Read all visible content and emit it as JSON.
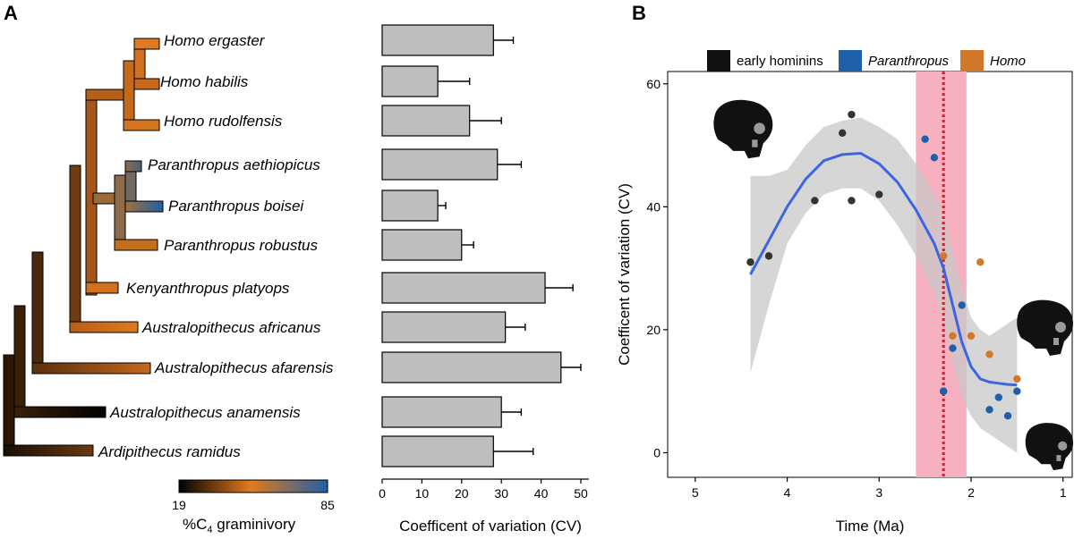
{
  "panels": {
    "a": "A",
    "b": "B"
  },
  "phylogeny": {
    "species": [
      "Homo ergaster",
      "Homo habilis",
      "Homo rudolfensis",
      "Paranthropus aethiopicus",
      "Paranthropus boisei",
      "Paranthropus robustus",
      "Kenyanthropus platyops",
      "Australopithecus africanus",
      "Australopithecus afarensis",
      "Australopithecus anamensis",
      "Ardipithecus ramidus"
    ],
    "colorbar": {
      "min": "19",
      "max": "85",
      "label_prefix": "%C",
      "label_sub": "4",
      "label_suffix": " graminivory",
      "colors": [
        "#000000",
        "#e07b1d",
        "#1f5fa8"
      ]
    }
  },
  "chart_data": [
    {
      "type": "bar",
      "orientation": "horizontal",
      "categories": [
        "Homo ergaster",
        "Homo habilis",
        "Homo rudolfensis",
        "Paranthropus aethiopicus",
        "Paranthropus boisei",
        "Paranthropus robustus",
        "Kenyanthropus platyops",
        "Australopithecus africanus",
        "Australopithecus afarensis",
        "Australopithecus anamensis",
        "Ardipithecus ramidus"
      ],
      "values": [
        28,
        14,
        22,
        29,
        14,
        20,
        41,
        31,
        45,
        30,
        28
      ],
      "errors": [
        5,
        8,
        8,
        6,
        2,
        3,
        7,
        5,
        5,
        5,
        10
      ],
      "xlabel": "Coefficent of variation (CV)",
      "xlim": [
        0,
        52
      ],
      "xticks": [
        0,
        10,
        20,
        30,
        40,
        50
      ],
      "bar_color": "#bebebe"
    },
    {
      "type": "scatter",
      "xlabel": "Time (Ma)",
      "ylabel": "Coefficent of variation (CV)",
      "xlim": [
        5.3,
        0.9
      ],
      "ylim": [
        -4,
        62
      ],
      "xticks": [
        5,
        4,
        3,
        2,
        1
      ],
      "yticks": [
        0,
        20,
        40,
        60
      ],
      "x_reversed": true,
      "legend": [
        {
          "label": "early hominins",
          "italic": false,
          "color": "#111111"
        },
        {
          "label": "Paranthropus",
          "italic": true,
          "color": "#1f5fa8"
        },
        {
          "label": "Homo",
          "italic": true,
          "color": "#d2782a"
        }
      ],
      "series": [
        {
          "name": "early hominins",
          "color": "#333333",
          "x": [
            4.4,
            4.2,
            3.7,
            3.4,
            3.3,
            3.3,
            3.0,
            2.3
          ],
          "y": [
            31,
            32,
            41,
            52,
            55,
            41,
            42,
            10
          ]
        },
        {
          "name": "Paranthropus",
          "color": "#1f5fa8",
          "x": [
            2.5,
            2.4,
            2.2,
            2.1,
            1.8,
            1.7,
            1.6,
            1.5,
            2.3
          ],
          "y": [
            51,
            48,
            17,
            24,
            7,
            9,
            6,
            10,
            10
          ]
        },
        {
          "name": "Homo",
          "color": "#d2782a",
          "x": [
            2.3,
            2.2,
            2.0,
            1.9,
            1.8,
            1.5
          ],
          "y": [
            32,
            19,
            19,
            31,
            16,
            12
          ]
        }
      ],
      "smooth": {
        "color": "#3b66e0",
        "band_color": "#c8c8c8",
        "x": [
          4.4,
          4.2,
          4.0,
          3.8,
          3.6,
          3.4,
          3.2,
          3.0,
          2.8,
          2.6,
          2.4,
          2.3,
          2.2,
          2.1,
          2.0,
          1.9,
          1.8,
          1.7,
          1.6,
          1.5
        ],
        "y": [
          29,
          34.5,
          40,
          44.5,
          47.5,
          48.5,
          48.7,
          47,
          44,
          39.5,
          34,
          30,
          24,
          18,
          14,
          12,
          11.5,
          11.3,
          11.1,
          11
        ],
        "lower": [
          13,
          24,
          34,
          39,
          42,
          43,
          43,
          41,
          37,
          32,
          26,
          21,
          15,
          9,
          6,
          4,
          3,
          2,
          1,
          0
        ],
        "upper": [
          45,
          45,
          46,
          50,
          53,
          54,
          54.5,
          53,
          51,
          47,
          42,
          39,
          33,
          27,
          22,
          20,
          19,
          20,
          21,
          22
        ]
      },
      "shaded_interval": {
        "x": [
          2.6,
          2.05
        ],
        "color": "#f7b0c0"
      },
      "vline": {
        "x": 2.3,
        "color": "#d01f2d",
        "style": "dotted"
      }
    }
  ]
}
